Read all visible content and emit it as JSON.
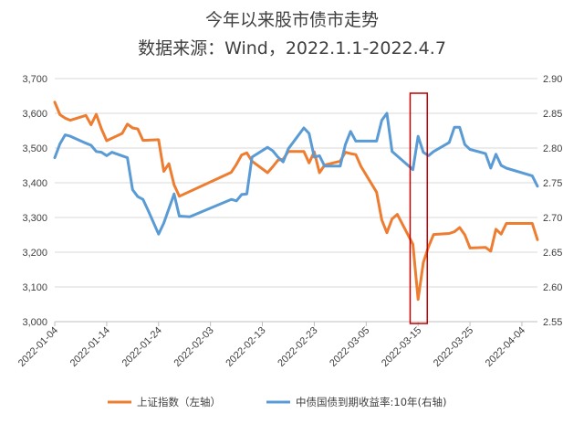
{
  "chart_data": {
    "type": "line",
    "title": "今年以来股市债市走势",
    "subtitle": "数据来源：Wind，2022.1.1-2022.4.7",
    "x_ticks": [
      "2022-01-04",
      "2022-01-14",
      "2022-01-24",
      "2022-02-03",
      "2022-02-13",
      "2022-02-23",
      "2022-03-05",
      "2022-03-15",
      "2022-03-25",
      "2022-04-04"
    ],
    "x_range": [
      "2022-01-04",
      "2022-04-07"
    ],
    "y_left": {
      "ticks": [
        "3,000",
        "3,100",
        "3,200",
        "3,300",
        "3,400",
        "3,500",
        "3,600",
        "3,700"
      ],
      "range": [
        3000,
        3700
      ]
    },
    "y_right": {
      "ticks": [
        "2.55",
        "2.60",
        "2.65",
        "2.70",
        "2.75",
        "2.80",
        "2.85",
        "2.90"
      ],
      "range": [
        2.55,
        2.9
      ]
    },
    "grid": true,
    "legend_position": "bottom",
    "highlight": {
      "from": "2022-03-14",
      "to": "2022-03-18",
      "color": "#c00000"
    },
    "series": [
      {
        "name": "上证指数（左轴）",
        "axis": "left",
        "color": "#ed7d31",
        "points": [
          [
            "2022-01-04",
            3632
          ],
          [
            "2022-01-05",
            3596
          ],
          [
            "2022-01-06",
            3586
          ],
          [
            "2022-01-07",
            3580
          ],
          [
            "2022-01-10",
            3594
          ],
          [
            "2022-01-11",
            3567
          ],
          [
            "2022-01-12",
            3597
          ],
          [
            "2022-01-13",
            3555
          ],
          [
            "2022-01-14",
            3521
          ],
          [
            "2022-01-17",
            3542
          ],
          [
            "2022-01-18",
            3569
          ],
          [
            "2022-01-19",
            3558
          ],
          [
            "2022-01-20",
            3555
          ],
          [
            "2022-01-21",
            3522
          ],
          [
            "2022-01-24",
            3524
          ],
          [
            "2022-01-25",
            3433
          ],
          [
            "2022-01-26",
            3455
          ],
          [
            "2022-01-27",
            3394
          ],
          [
            "2022-01-28",
            3361
          ],
          [
            "2022-02-07",
            3430
          ],
          [
            "2022-02-08",
            3453
          ],
          [
            "2022-02-09",
            3480
          ],
          [
            "2022-02-10",
            3486
          ],
          [
            "2022-02-11",
            3462
          ],
          [
            "2022-02-14",
            3429
          ],
          [
            "2022-02-15",
            3446
          ],
          [
            "2022-02-16",
            3465
          ],
          [
            "2022-02-17",
            3468
          ],
          [
            "2022-02-18",
            3490
          ],
          [
            "2022-02-21",
            3490
          ],
          [
            "2022-02-22",
            3457
          ],
          [
            "2022-02-23",
            3489
          ],
          [
            "2022-02-24",
            3429
          ],
          [
            "2022-02-25",
            3451
          ],
          [
            "2022-02-28",
            3462
          ],
          [
            "2022-03-01",
            3488
          ],
          [
            "2022-03-02",
            3484
          ],
          [
            "2022-03-03",
            3481
          ],
          [
            "2022-03-04",
            3447
          ],
          [
            "2022-03-07",
            3373
          ],
          [
            "2022-03-08",
            3293
          ],
          [
            "2022-03-09",
            3256
          ],
          [
            "2022-03-10",
            3296
          ],
          [
            "2022-03-11",
            3309
          ],
          [
            "2022-03-14",
            3223
          ],
          [
            "2022-03-15",
            3064
          ],
          [
            "2022-03-16",
            3170
          ],
          [
            "2022-03-17",
            3215
          ],
          [
            "2022-03-18",
            3251
          ],
          [
            "2022-03-21",
            3254
          ],
          [
            "2022-03-22",
            3259
          ],
          [
            "2022-03-23",
            3271
          ],
          [
            "2022-03-24",
            3250
          ],
          [
            "2022-03-25",
            3212
          ],
          [
            "2022-03-28",
            3214
          ],
          [
            "2022-03-29",
            3203
          ],
          [
            "2022-03-30",
            3266
          ],
          [
            "2022-03-31",
            3252
          ],
          [
            "2022-04-01",
            3283
          ],
          [
            "2022-04-06",
            3283
          ],
          [
            "2022-04-07",
            3236
          ]
        ]
      },
      {
        "name": "中债国债到期收益率:10年(右轴)",
        "axis": "right",
        "color": "#5b9bd5",
        "points": [
          [
            "2022-01-04",
            2.786
          ],
          [
            "2022-01-05",
            2.806
          ],
          [
            "2022-01-06",
            2.819
          ],
          [
            "2022-01-07",
            2.817
          ],
          [
            "2022-01-10",
            2.807
          ],
          [
            "2022-01-11",
            2.804
          ],
          [
            "2022-01-12",
            2.795
          ],
          [
            "2022-01-13",
            2.794
          ],
          [
            "2022-01-14",
            2.789
          ],
          [
            "2022-01-15",
            2.794
          ],
          [
            "2022-01-18",
            2.786
          ],
          [
            "2022-01-19",
            2.74
          ],
          [
            "2022-01-20",
            2.73
          ],
          [
            "2022-01-21",
            2.726
          ],
          [
            "2022-01-22",
            2.71
          ],
          [
            "2022-01-24",
            2.676
          ],
          [
            "2022-01-25",
            2.692
          ],
          [
            "2022-01-27",
            2.734
          ],
          [
            "2022-01-28",
            2.702
          ],
          [
            "2022-01-30",
            2.701
          ],
          [
            "2022-02-07",
            2.726
          ],
          [
            "2022-02-08",
            2.724
          ],
          [
            "2022-02-09",
            2.733
          ],
          [
            "2022-02-10",
            2.734
          ],
          [
            "2022-02-11",
            2.787
          ],
          [
            "2022-02-14",
            2.801
          ],
          [
            "2022-02-15",
            2.796
          ],
          [
            "2022-02-16",
            2.787
          ],
          [
            "2022-02-17",
            2.78
          ],
          [
            "2022-02-18",
            2.799
          ],
          [
            "2022-02-21",
            2.829
          ],
          [
            "2022-02-22",
            2.821
          ],
          [
            "2022-02-23",
            2.787
          ],
          [
            "2022-02-24",
            2.789
          ],
          [
            "2022-02-25",
            2.774
          ],
          [
            "2022-02-28",
            2.774
          ],
          [
            "2022-03-01",
            2.805
          ],
          [
            "2022-03-02",
            2.824
          ],
          [
            "2022-03-03",
            2.81
          ],
          [
            "2022-03-04",
            2.81
          ],
          [
            "2022-03-07",
            2.81
          ],
          [
            "2022-03-08",
            2.84
          ],
          [
            "2022-03-09",
            2.85
          ],
          [
            "2022-03-10",
            2.795
          ],
          [
            "2022-03-14",
            2.769
          ],
          [
            "2022-03-15",
            2.817
          ],
          [
            "2022-03-16",
            2.794
          ],
          [
            "2022-03-17",
            2.789
          ],
          [
            "2022-03-18",
            2.795
          ],
          [
            "2022-03-21",
            2.808
          ],
          [
            "2022-03-22",
            2.83
          ],
          [
            "2022-03-23",
            2.83
          ],
          [
            "2022-03-24",
            2.805
          ],
          [
            "2022-03-25",
            2.798
          ],
          [
            "2022-03-28",
            2.792
          ],
          [
            "2022-03-29",
            2.771
          ],
          [
            "2022-03-30",
            2.791
          ],
          [
            "2022-03-31",
            2.775
          ],
          [
            "2022-04-01",
            2.771
          ],
          [
            "2022-04-06",
            2.76
          ],
          [
            "2022-04-07",
            2.745
          ]
        ]
      }
    ]
  }
}
